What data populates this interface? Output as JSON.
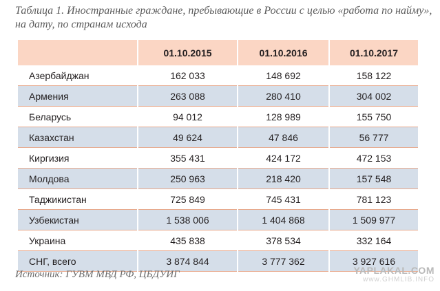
{
  "title": "Таблица 1. Иностранные граждане, пребывающие в России с целью «работа по найму», на дату, по странам исхода",
  "table": {
    "headers": [
      "",
      "01.10.2015",
      "01.10.2016",
      "01.10.2017"
    ],
    "rows": [
      [
        "Азербайджан",
        "162 033",
        "148 692",
        "158 122"
      ],
      [
        "Армения",
        "263 088",
        "280 410",
        "304 002"
      ],
      [
        "Беларусь",
        "94 012",
        "128 989",
        "155 750"
      ],
      [
        "Казахстан",
        "49 624",
        "47 846",
        "56 777"
      ],
      [
        "Киргизия",
        "355 431",
        "424 172",
        "472 153"
      ],
      [
        "Молдова",
        "250 963",
        "218 420",
        "157 548"
      ],
      [
        "Таджикистан",
        "725 849",
        "745 431",
        "781 123"
      ],
      [
        "Узбекистан",
        "1 538 006",
        "1 404 868",
        "1 509 977"
      ],
      [
        "Украина",
        "435 838",
        "378 534",
        "332 164"
      ],
      [
        "СНГ, всего",
        "3 874 844",
        "3 777 362",
        "3 927 616"
      ]
    ]
  },
  "source": "Источник: ГУВМ МВД РФ, ЦБДУИГ",
  "watermark": {
    "line1": "YAPLAKAL.COM",
    "line2": "www.GHMLIB.INFO"
  },
  "colors": {
    "header_bg": "#fbd6c4",
    "stripe_bg": "#d5dee9",
    "rule": "#e8a98c"
  }
}
